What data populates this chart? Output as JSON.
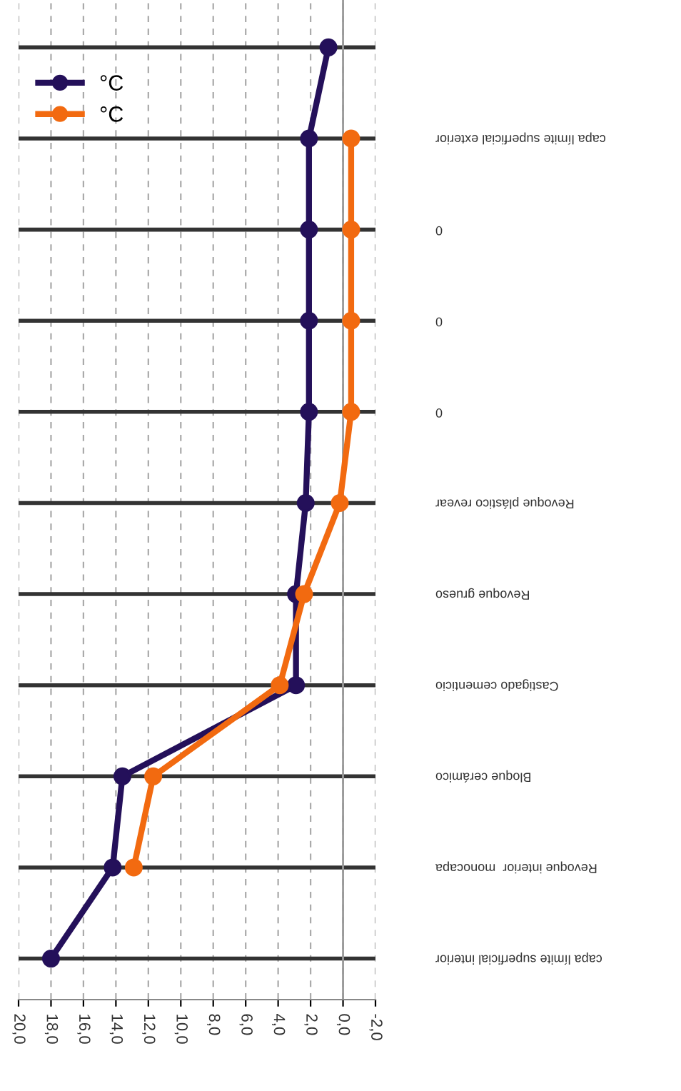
{
  "chart_data": {
    "type": "line",
    "orientation": "horizontal",
    "categories": [
      null,
      "capa límite superficial exterior",
      "0",
      "0",
      "0",
      "Revoque plástico revear",
      "Revoque grueso",
      "Castigado cementicio",
      "Bloque cerámico",
      "Revoque interior  monocapa",
      "capa límite superficial interior"
    ],
    "series": [
      {
        "name": "°C",
        "color": "#24105a",
        "values": [
          0.9,
          2.1,
          2.1,
          2.1,
          2.1,
          2.3,
          2.9,
          2.9,
          13.6,
          14.2,
          18.0
        ]
      },
      {
        "name": "°C",
        "color": "#f26a10",
        "values": [
          null,
          -0.5,
          -0.5,
          -0.5,
          -0.5,
          0.2,
          2.4,
          3.9,
          11.7,
          12.9,
          null
        ]
      }
    ],
    "xlim": [
      20,
      -2
    ],
    "xticks": [
      {
        "value": 20,
        "label": "20,0"
      },
      {
        "value": 18,
        "label": "18,0"
      },
      {
        "value": 16,
        "label": "16,0"
      },
      {
        "value": 14,
        "label": "14,0"
      },
      {
        "value": 12,
        "label": "12,0"
      },
      {
        "value": 10,
        "label": "10,0"
      },
      {
        "value": 8,
        "label": "8,0"
      },
      {
        "value": 6,
        "label": "6,0"
      },
      {
        "value": 4,
        "label": "4,0"
      },
      {
        "value": 2,
        "label": "2,0"
      },
      {
        "value": 0,
        "label": "0,0"
      },
      {
        "value": -2,
        "label": "-2,0"
      }
    ],
    "ref_lines": [
      {
        "axis": "x",
        "value": 0,
        "color": "#999999"
      }
    ],
    "grid": true,
    "legend": "top left",
    "marker": "circle",
    "line_style": "solid"
  }
}
